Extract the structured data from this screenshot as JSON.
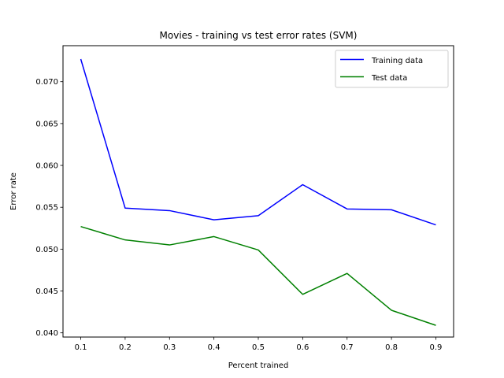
{
  "chart_data": {
    "type": "line",
    "title": "Movies - training vs test error rates (SVM)",
    "xlabel": "Percent trained",
    "ylabel": "Error rate",
    "x": [
      0.1,
      0.2,
      0.3,
      0.4,
      0.5,
      0.6,
      0.7,
      0.8,
      0.9
    ],
    "x_ticks": [
      "0.1",
      "0.2",
      "0.3",
      "0.4",
      "0.5",
      "0.6",
      "0.7",
      "0.8",
      "0.9"
    ],
    "y_ticks": [
      "0.040",
      "0.045",
      "0.050",
      "0.055",
      "0.060",
      "0.065",
      "0.070"
    ],
    "xlim": [
      0.06,
      0.94
    ],
    "ylim": [
      0.0395,
      0.0743
    ],
    "grid": false,
    "legend_position": "top-right",
    "series": [
      {
        "name": "Training data",
        "color": "#0000ff",
        "values": [
          0.0727,
          0.0549,
          0.0546,
          0.0535,
          0.054,
          0.0577,
          0.0548,
          0.0547,
          0.0529
        ]
      },
      {
        "name": "Test data",
        "color": "#008000",
        "values": [
          0.0527,
          0.0511,
          0.0505,
          0.0515,
          0.0499,
          0.0446,
          0.0471,
          0.0427,
          0.0409
        ]
      }
    ]
  }
}
